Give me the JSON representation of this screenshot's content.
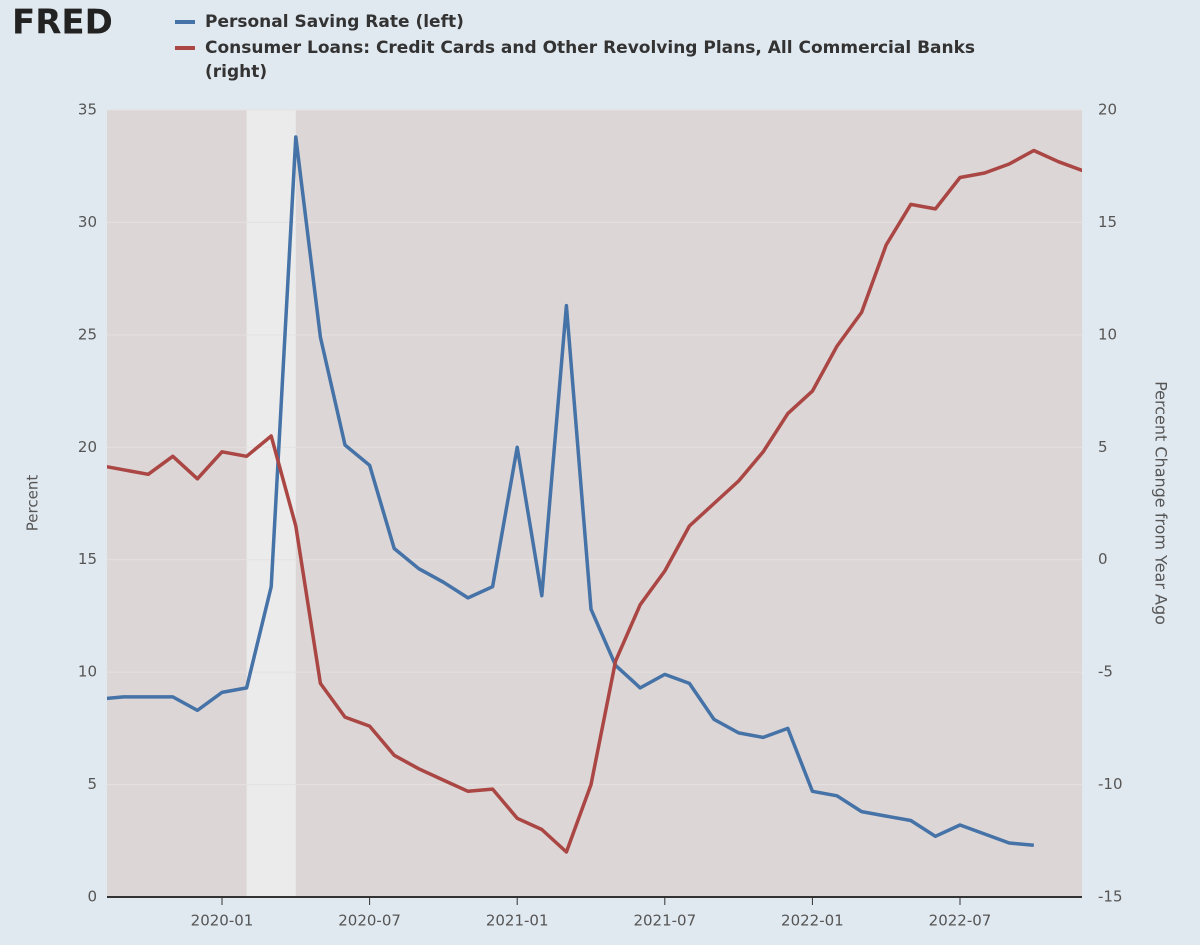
{
  "logo": "FRED",
  "chart_data": {
    "type": "line",
    "legend": [
      "Personal Saving Rate (left)",
      "Consumer Loans: Credit Cards and Other Revolving Plans, All Commercial Banks (right)"
    ],
    "ylabel": "Percent",
    "y2label": "Percent Change from Year Ago",
    "categories": [
      "2019-08",
      "2019-09",
      "2019-10",
      "2019-11",
      "2019-12",
      "2020-01",
      "2020-02",
      "2020-03",
      "2020-04",
      "2020-05",
      "2020-06",
      "2020-07",
      "2020-08",
      "2020-09",
      "2020-10",
      "2020-11",
      "2020-12",
      "2021-01",
      "2021-02",
      "2021-03",
      "2021-04",
      "2021-05",
      "2021-06",
      "2021-07",
      "2021-08",
      "2021-09",
      "2021-10",
      "2021-11",
      "2021-12",
      "2022-01",
      "2022-02",
      "2022-03",
      "2022-04",
      "2022-05",
      "2022-06",
      "2022-07",
      "2022-08",
      "2022-09",
      "2022-10",
      "2022-11",
      "2022-12"
    ],
    "xticks": [
      "2020-01",
      "2020-07",
      "2021-01",
      "2021-07",
      "2022-01",
      "2022-07"
    ],
    "shading": [
      "2020-02",
      "2020-04"
    ],
    "series": [
      {
        "name": "Personal Saving Rate (left)",
        "color": "#4572a7",
        "axis": "y",
        "values": [
          8.8,
          8.9,
          8.9,
          8.9,
          8.3,
          9.1,
          9.3,
          13.8,
          33.8,
          24.9,
          20.1,
          19.2,
          15.5,
          14.6,
          14.0,
          13.3,
          13.8,
          20.0,
          13.4,
          26.3,
          12.8,
          10.3,
          9.3,
          9.9,
          9.5,
          7.9,
          7.3,
          7.1,
          7.5,
          4.7,
          4.5,
          3.8,
          3.6,
          3.4,
          2.7,
          3.2,
          2.8,
          2.4,
          2.3,
          null,
          null
        ]
      },
      {
        "name": "Consumer Loans: Credit Cards and Other Revolving Plans, All Commercial Banks (right)",
        "color": "#aa4643",
        "axis": "y2",
        "values": [
          4.2,
          4.0,
          3.8,
          4.6,
          3.6,
          4.8,
          4.6,
          5.5,
          1.5,
          -5.5,
          -7.0,
          -7.4,
          -8.7,
          -9.3,
          -9.8,
          -10.3,
          -10.2,
          -11.5,
          -12.0,
          -13.0,
          -10.0,
          -4.5,
          -2.0,
          -0.5,
          1.5,
          2.5,
          3.5,
          4.8,
          6.5,
          7.5,
          9.5,
          11.0,
          14.0,
          15.8,
          15.6,
          17.0,
          17.2,
          17.6,
          18.2,
          17.7,
          17.3
        ]
      }
    ],
    "ylim": [
      0,
      35
    ],
    "yticks": [
      0,
      5,
      10,
      15,
      20,
      25,
      30,
      35
    ],
    "y2lim": [
      -15,
      20
    ],
    "y2ticks": [
      -15,
      -10,
      -5,
      0,
      5,
      10,
      15,
      20
    ],
    "grid": true
  }
}
